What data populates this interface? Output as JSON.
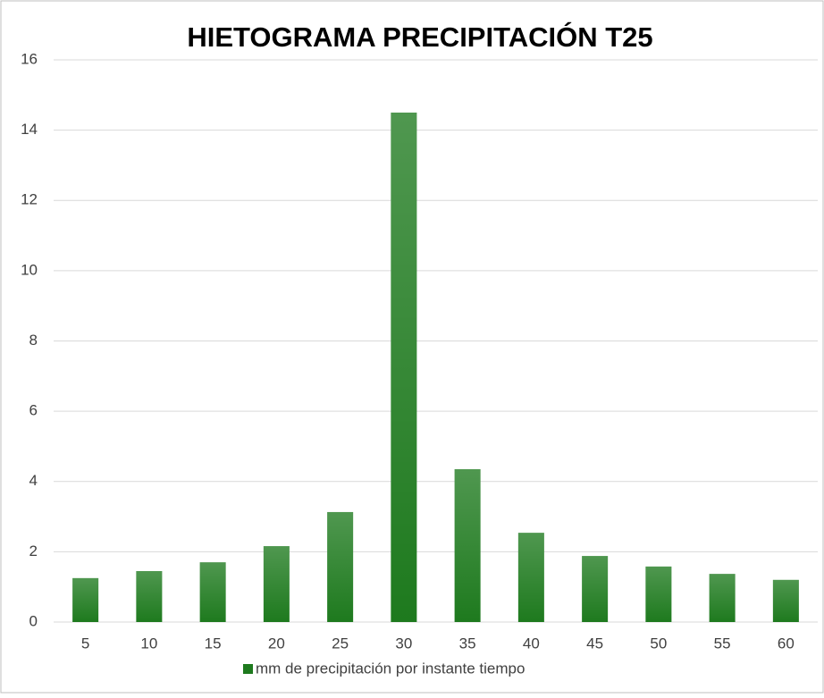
{
  "chart_data": {
    "type": "bar",
    "title": "HIETOGRAMA PRECIPITACIÓN T25",
    "categories": [
      "5",
      "10",
      "15",
      "20",
      "25",
      "30",
      "35",
      "40",
      "45",
      "50",
      "55",
      "60"
    ],
    "series": [
      {
        "name": "mm de precipitación por instante tiempo",
        "color": "#1e7a1e",
        "values": [
          1.25,
          1.45,
          1.7,
          2.16,
          3.13,
          14.5,
          4.35,
          2.54,
          1.88,
          1.58,
          1.37,
          1.2
        ]
      }
    ],
    "ylim": [
      0,
      16
    ],
    "yticks": [
      0,
      2,
      4,
      6,
      8,
      10,
      12,
      14,
      16
    ],
    "grid": true,
    "legend": "bottom"
  }
}
